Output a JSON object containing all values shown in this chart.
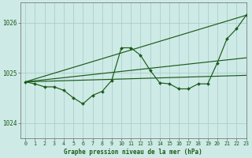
{
  "bg_color": "#ceeae6",
  "grid_color": "#a8d0cc",
  "line_color": "#1a5c1a",
  "title": "Graphe pression niveau de la mer (hPa)",
  "xlim": [
    -0.5,
    23
  ],
  "ylim": [
    1023.7,
    1026.4
  ],
  "yticks": [
    1024,
    1025,
    1026
  ],
  "xticks": [
    0,
    1,
    2,
    3,
    4,
    5,
    6,
    7,
    8,
    9,
    10,
    11,
    12,
    13,
    14,
    15,
    16,
    17,
    18,
    19,
    20,
    21,
    22,
    23
  ],
  "line1_x": [
    0,
    23
  ],
  "line1_y": [
    1024.82,
    1026.15
  ],
  "line2_x": [
    0,
    23
  ],
  "line2_y": [
    1024.82,
    1025.3
  ],
  "line3_x": [
    0,
    23
  ],
  "line3_y": [
    1024.82,
    1024.95
  ],
  "jagged_y": [
    1024.82,
    1024.78,
    1024.72,
    1024.72,
    1024.65,
    1024.5,
    1024.38,
    1024.55,
    1024.63,
    1024.85,
    1025.5,
    1025.5,
    1025.35,
    1025.05,
    1024.8,
    1024.78,
    1024.68,
    1024.68,
    1024.78,
    1024.78,
    1025.2,
    1025.68,
    1025.88,
    1026.15
  ]
}
